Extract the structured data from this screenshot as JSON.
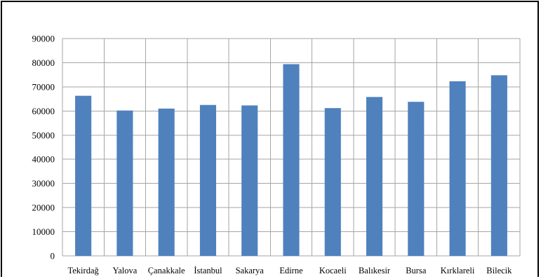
{
  "chart_data": {
    "type": "bar",
    "categories": [
      "Tekirdağ",
      "Yalova",
      "Çanakkale",
      "İstanbul",
      "Sakarya",
      "Edirne",
      "Kocaeli",
      "Balıkesir",
      "Bursa",
      "Kırklareli",
      "Bilecik"
    ],
    "values": [
      66300,
      60200,
      61000,
      62500,
      62300,
      79400,
      61200,
      65800,
      63800,
      72300,
      74800
    ],
    "ylim": [
      0,
      90000
    ],
    "yticks": [
      "0",
      "10000",
      "20000",
      "30000",
      "40000",
      "50000",
      "60000",
      "70000",
      "80000",
      "90000"
    ],
    "grid": true,
    "bar_color": "#4f81bd",
    "grid_color": "#a6a6a6"
  }
}
